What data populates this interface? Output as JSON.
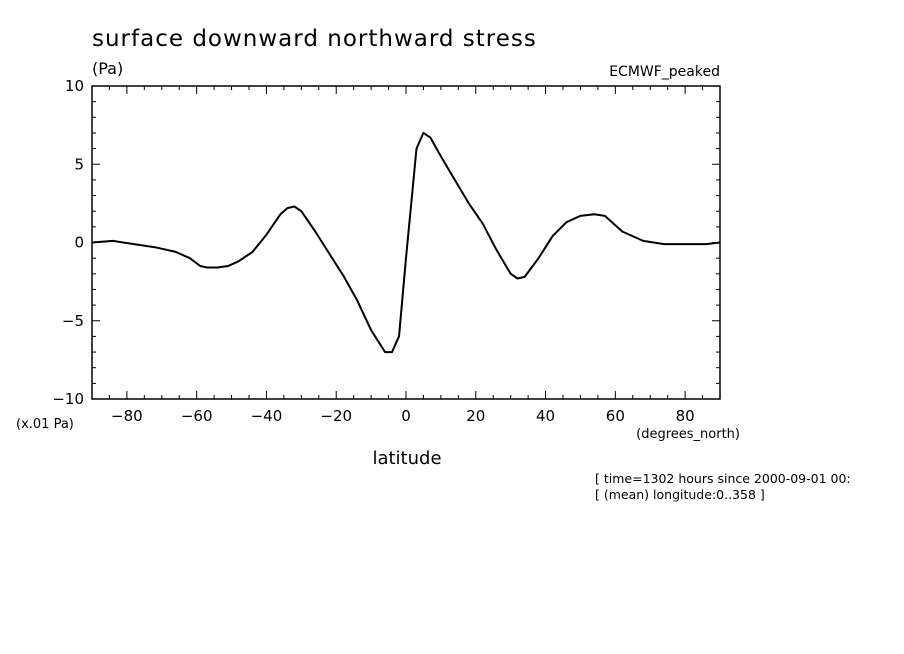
{
  "chart_data": {
    "type": "line",
    "title": "surface downward northward stress",
    "units_label": "(Pa)",
    "dataset_label": "ECMWF_peaked",
    "scale_label": "(x.01 Pa)",
    "xlabel": "latitude",
    "x_units_label": "(degrees_north)",
    "xlim": [
      -90,
      90
    ],
    "ylim": [
      -10,
      10
    ],
    "x_ticks": [
      -80,
      -60,
      -40,
      -20,
      0,
      20,
      40,
      60,
      80
    ],
    "x_tick_labels": [
      "-80",
      "-60",
      "-40",
      "-20",
      "0",
      "20",
      "40",
      "60",
      "80"
    ],
    "y_ticks": [
      -10,
      -5,
      0,
      5,
      10
    ],
    "y_tick_labels": [
      "-10",
      "-5",
      "0",
      "5",
      "10"
    ],
    "grid": false,
    "series": [
      {
        "name": "surface downward northward stress",
        "x": [
          -90,
          -84,
          -78,
          -72,
          -66,
          -62,
          -59,
          -57,
          -54,
          -51,
          -48,
          -44,
          -40,
          -36,
          -34,
          -32,
          -30,
          -26,
          -22,
          -18,
          -14,
          -10,
          -6,
          -4,
          -2,
          0,
          3,
          5,
          7,
          10,
          14,
          18,
          22,
          26,
          30,
          32,
          34,
          38,
          42,
          46,
          50,
          54,
          57,
          62,
          68,
          74,
          80,
          86,
          90
        ],
        "y": [
          0.0,
          0.1,
          -0.1,
          -0.3,
          -0.6,
          -1.0,
          -1.5,
          -1.6,
          -1.6,
          -1.5,
          -1.2,
          -0.6,
          0.5,
          1.8,
          2.2,
          2.3,
          2.0,
          0.7,
          -0.7,
          -2.1,
          -3.7,
          -5.6,
          -7.0,
          -7.0,
          -6.0,
          -1.0,
          6.0,
          7.0,
          6.7,
          5.5,
          4.0,
          2.5,
          1.2,
          -0.5,
          -2.0,
          -2.3,
          -2.2,
          -1.0,
          0.4,
          1.3,
          1.7,
          1.8,
          1.7,
          0.7,
          0.1,
          -0.1,
          -0.1,
          -0.1,
          0.0
        ]
      }
    ]
  },
  "annotations": {
    "line1": "[ time=1302 hours since 2000-09-01 00:",
    "line2": "[ (mean) longitude:0..358 ]"
  },
  "colors": {
    "line": "#000000",
    "axis": "#000000",
    "background": "#ffffff"
  }
}
